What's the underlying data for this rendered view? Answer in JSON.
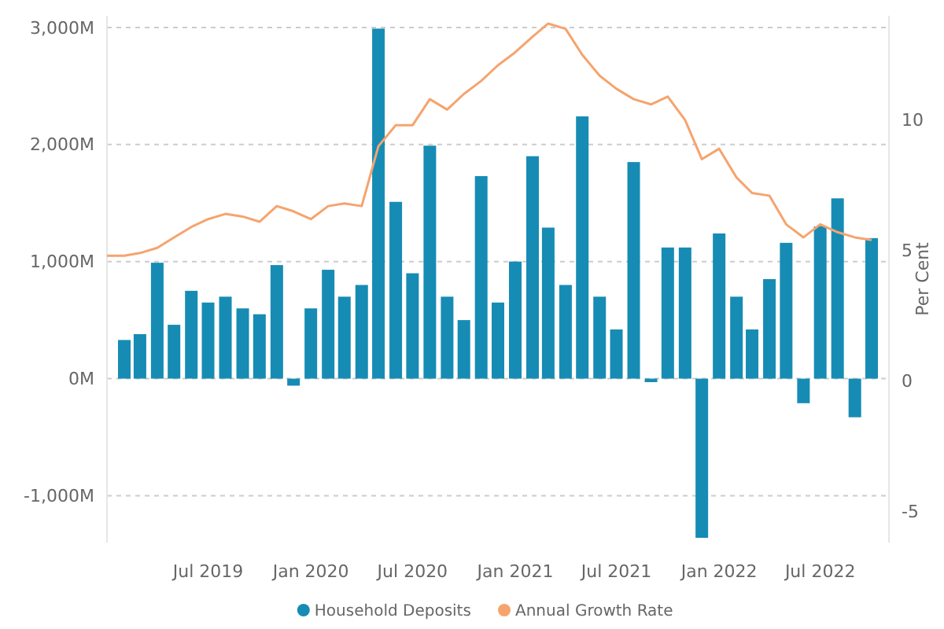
{
  "chart_data": {
    "type": "bar",
    "x": [
      "2019-02",
      "2019-03",
      "2019-04",
      "2019-05",
      "2019-06",
      "2019-07",
      "2019-08",
      "2019-09",
      "2019-10",
      "2019-11",
      "2019-12",
      "2020-01",
      "2020-02",
      "2020-03",
      "2020-04",
      "2020-05",
      "2020-06",
      "2020-07",
      "2020-08",
      "2020-09",
      "2020-10",
      "2020-11",
      "2020-12",
      "2021-01",
      "2021-02",
      "2021-03",
      "2021-04",
      "2021-05",
      "2021-06",
      "2021-07",
      "2021-08",
      "2021-09",
      "2021-10",
      "2021-11",
      "2021-12",
      "2022-01",
      "2022-02",
      "2022-03",
      "2022-04",
      "2022-05",
      "2022-06",
      "2022-07",
      "2022-08",
      "2022-09",
      "2022-10"
    ],
    "series": [
      {
        "name": "Household Deposits",
        "color": "#168cb4",
        "values": [
          330,
          380,
          990,
          460,
          750,
          650,
          700,
          600,
          550,
          970,
          -60,
          600,
          930,
          700,
          800,
          2990,
          1510,
          900,
          1990,
          700,
          500,
          1730,
          650,
          1000,
          1900,
          1290,
          800,
          2240,
          700,
          420,
          1850,
          -30,
          1120,
          1120,
          -1360,
          1240,
          700,
          420,
          850,
          1160,
          -210,
          1300,
          1540,
          -330,
          1200
        ]
      },
      {
        "name": "Annual Growth Rate",
        "type": "line",
        "axis": "y2",
        "color": "#f5a46e",
        "x": [
          "2019-01",
          "2019-02",
          "2019-03",
          "2019-04",
          "2019-05",
          "2019-06",
          "2019-07",
          "2019-08",
          "2019-09",
          "2019-10",
          "2019-11",
          "2019-12",
          "2020-01",
          "2020-02",
          "2020-03",
          "2020-04",
          "2020-05",
          "2020-06",
          "2020-07",
          "2020-08",
          "2020-09",
          "2020-10",
          "2020-11",
          "2020-12",
          "2021-01",
          "2021-02",
          "2021-03",
          "2021-04",
          "2021-05",
          "2021-06",
          "2021-07",
          "2021-08",
          "2021-09",
          "2021-10",
          "2021-11",
          "2021-12",
          "2022-01",
          "2022-02",
          "2022-03",
          "2022-04",
          "2022-05",
          "2022-06",
          "2022-07",
          "2022-08",
          "2022-09",
          "2022-10"
        ],
        "values": [
          4.8,
          4.8,
          4.9,
          5.1,
          5.5,
          5.9,
          6.2,
          6.4,
          6.3,
          6.1,
          6.7,
          6.5,
          6.2,
          6.7,
          6.8,
          6.7,
          9.0,
          9.8,
          9.8,
          10.8,
          10.4,
          11.0,
          11.5,
          12.1,
          12.6,
          13.2,
          13.7,
          13.5,
          12.5,
          11.7,
          11.2,
          10.8,
          10.6,
          10.9,
          10.0,
          8.5,
          8.9,
          7.8,
          7.2,
          7.1,
          6.0,
          5.5,
          6.0,
          5.7,
          5.5,
          5.4
        ]
      }
    ],
    "xlim": [
      "2019-01",
      "2022-11"
    ],
    "xticks": [
      {
        "value": "2019-07",
        "label": "Jul 2019"
      },
      {
        "value": "2020-01",
        "label": "Jan 2020"
      },
      {
        "value": "2020-07",
        "label": "Jul 2020"
      },
      {
        "value": "2021-01",
        "label": "Jan 2021"
      },
      {
        "value": "2021-07",
        "label": "Jul 2021"
      },
      {
        "value": "2022-01",
        "label": "Jan 2022"
      },
      {
        "value": "2022-07",
        "label": "Jul 2022"
      }
    ],
    "ylim": [
      -1400,
      3100
    ],
    "yticks": [
      {
        "value": -1000,
        "label": "-1,000M"
      },
      {
        "value": 0,
        "label": "0M"
      },
      {
        "value": 1000,
        "label": "1,000M"
      },
      {
        "value": 2000,
        "label": "2,000M"
      },
      {
        "value": 3000,
        "label": "3,000M"
      }
    ],
    "y2lim": [
      -6.2,
      14
    ],
    "y2ticks": [
      -5,
      0,
      5,
      10
    ],
    "y2label": "Per Cent",
    "grid": "y",
    "legend": "bottom"
  }
}
